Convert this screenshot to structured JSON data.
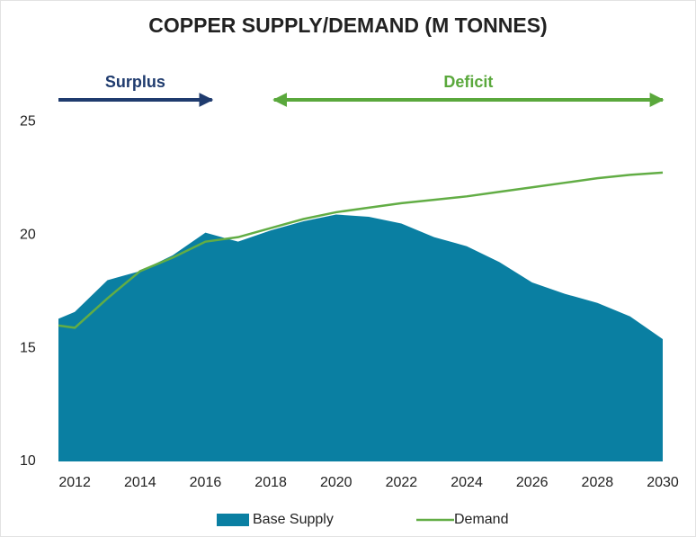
{
  "chart_data": {
    "type": "area_line",
    "title": "COPPER SUPPLY/DEMAND (M TONNES)",
    "x": [
      2011.5,
      2012,
      2013,
      2014,
      2015,
      2016,
      2017,
      2018,
      2019,
      2020,
      2021,
      2022,
      2023,
      2024,
      2025,
      2026,
      2027,
      2028,
      2029,
      2030
    ],
    "series": [
      {
        "name": "Base Supply",
        "kind": "area",
        "color": "#0a7fa2",
        "values": [
          16.3,
          16.6,
          18.0,
          18.4,
          19.1,
          20.1,
          19.7,
          20.2,
          20.6,
          20.9,
          20.8,
          20.5,
          19.9,
          19.5,
          18.8,
          17.9,
          17.4,
          17.0,
          16.4,
          15.4
        ]
      },
      {
        "name": "Demand",
        "kind": "line",
        "color": "#62ad45",
        "values": [
          16.0,
          15.9,
          17.2,
          18.4,
          19.0,
          19.7,
          19.9,
          20.3,
          20.7,
          21.0,
          21.2,
          21.4,
          21.55,
          21.7,
          21.9,
          22.1,
          22.3,
          22.5,
          22.65,
          22.75
        ]
      }
    ],
    "xlim": [
      2011.5,
      2030
    ],
    "xticks": [
      2012,
      2014,
      2016,
      2018,
      2020,
      2022,
      2024,
      2026,
      2028,
      2030
    ],
    "ylim": [
      10,
      26
    ],
    "yticks": [
      10,
      15,
      20,
      25
    ],
    "annotations": [
      {
        "text": "Surplus",
        "from": 2011.5,
        "to": 2016.2,
        "color": "#1f3b6e",
        "double": false
      },
      {
        "text": "Deficit",
        "from": 2018.1,
        "to": 2030,
        "color": "#5aa83c",
        "double": true
      }
    ]
  }
}
